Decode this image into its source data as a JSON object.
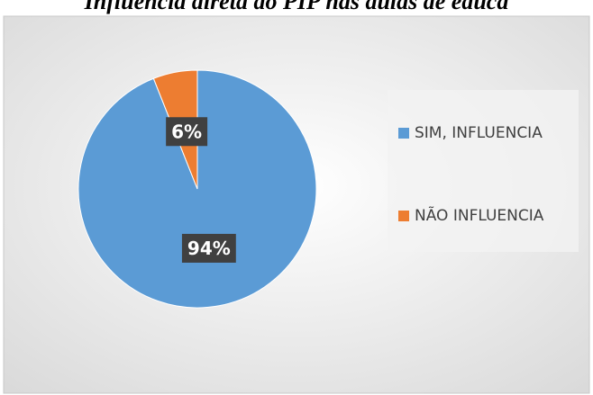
{
  "chart_data": {
    "type": "pie",
    "title": "Influência direta do PIP nas aulas de educa",
    "categories": [
      "SIM, INFLUENCIA",
      "NÃO INFLUENCIA"
    ],
    "values": [
      94,
      6
    ],
    "value_labels": [
      "94%",
      "6%"
    ],
    "colors": [
      "#5b9bd5",
      "#ed7d31"
    ],
    "legend": "right"
  }
}
